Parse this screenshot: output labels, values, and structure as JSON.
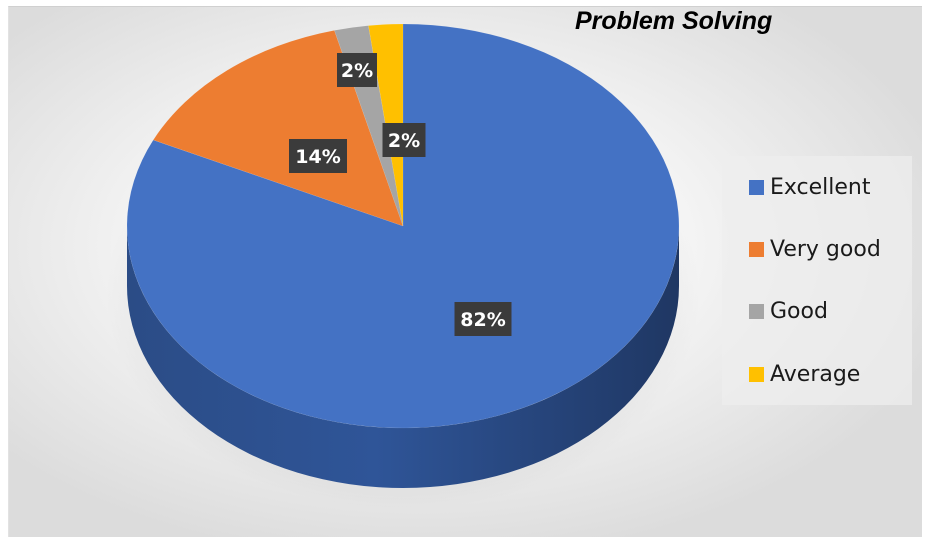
{
  "chart_data": {
    "type": "pie",
    "title": "Problem Solving",
    "categories": [
      "Excellent",
      "Very good",
      "Good",
      "Average"
    ],
    "values": [
      82,
      14,
      2,
      2
    ],
    "data_labels": [
      "82%",
      "14%",
      "2%",
      "2%"
    ],
    "colors": [
      "#4472c4",
      "#ed7d31",
      "#a5a5a5",
      "#ffc000"
    ],
    "legend_position": "right",
    "style": "3d"
  }
}
